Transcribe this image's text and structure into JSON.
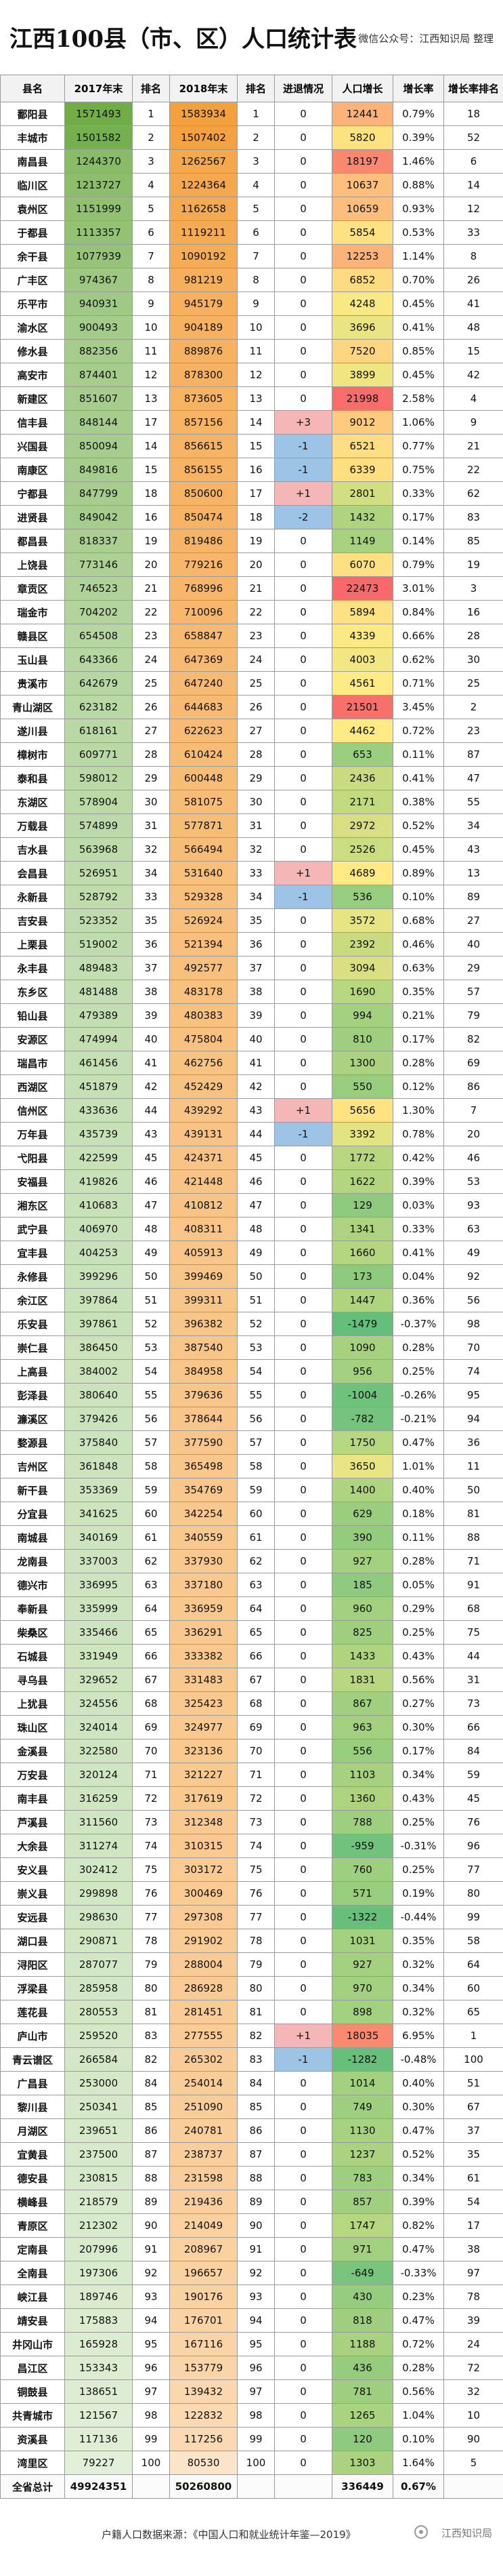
{
  "header": {
    "title": "江西100县（市、区）人口统计表",
    "note": "微信公众号：江西知识局 整理"
  },
  "table": {
    "columns": [
      "县名",
      "2017年末",
      "排名",
      "2018年末",
      "排名",
      "进退情况",
      "人口增长",
      "增长率",
      "增长率排名"
    ],
    "rows": [
      [
        "鄱阳县",
        1571493,
        1,
        1583934,
        1,
        "0",
        12441,
        "0.79%",
        18
      ],
      [
        "丰城市",
        1501582,
        2,
        1507402,
        2,
        "0",
        5820,
        "0.39%",
        52
      ],
      [
        "南昌县",
        1244370,
        3,
        1262567,
        3,
        "0",
        18197,
        "1.46%",
        6
      ],
      [
        "临川区",
        1213727,
        4,
        1224364,
        4,
        "0",
        10637,
        "0.88%",
        14
      ],
      [
        "袁州区",
        1151999,
        5,
        1162658,
        5,
        "0",
        10659,
        "0.93%",
        12
      ],
      [
        "于都县",
        1113357,
        6,
        1119211,
        6,
        "0",
        5854,
        "0.53%",
        33
      ],
      [
        "余干县",
        1077939,
        7,
        1090192,
        7,
        "0",
        12253,
        "1.14%",
        8
      ],
      [
        "广丰区",
        974367,
        8,
        981219,
        8,
        "0",
        6852,
        "0.70%",
        26
      ],
      [
        "乐平市",
        940931,
        9,
        945179,
        9,
        "0",
        4248,
        "0.45%",
        41
      ],
      [
        "渝水区",
        900493,
        10,
        904189,
        10,
        "0",
        3696,
        "0.41%",
        48
      ],
      [
        "修水县",
        882356,
        11,
        889876,
        11,
        "0",
        7520,
        "0.85%",
        15
      ],
      [
        "高安市",
        874401,
        12,
        878300,
        12,
        "0",
        3899,
        "0.45%",
        42
      ],
      [
        "新建区",
        851607,
        13,
        873605,
        13,
        "0",
        21998,
        "2.58%",
        4
      ],
      [
        "信丰县",
        848144,
        17,
        857156,
        14,
        "+3",
        9012,
        "1.06%",
        9
      ],
      [
        "兴国县",
        850094,
        14,
        856615,
        15,
        "-1",
        6521,
        "0.77%",
        21
      ],
      [
        "南康区",
        849816,
        15,
        856155,
        16,
        "-1",
        6339,
        "0.75%",
        22
      ],
      [
        "宁都县",
        847799,
        18,
        850600,
        17,
        "+1",
        2801,
        "0.33%",
        62
      ],
      [
        "进贤县",
        849042,
        16,
        850474,
        18,
        "-2",
        1432,
        "0.17%",
        83
      ],
      [
        "都昌县",
        818337,
        19,
        819486,
        19,
        "0",
        1149,
        "0.14%",
        85
      ],
      [
        "上饶县",
        773146,
        20,
        779216,
        20,
        "0",
        6070,
        "0.79%",
        19
      ],
      [
        "章贡区",
        746523,
        21,
        768996,
        21,
        "0",
        22473,
        "3.01%",
        3
      ],
      [
        "瑞金市",
        704202,
        22,
        710096,
        22,
        "0",
        5894,
        "0.84%",
        16
      ],
      [
        "赣县区",
        654508,
        23,
        658847,
        23,
        "0",
        4339,
        "0.66%",
        28
      ],
      [
        "玉山县",
        643366,
        24,
        647369,
        24,
        "0",
        4003,
        "0.62%",
        30
      ],
      [
        "贵溪市",
        642679,
        25,
        647240,
        25,
        "0",
        4561,
        "0.71%",
        25
      ],
      [
        "青山湖区",
        623182,
        26,
        644683,
        26,
        "0",
        21501,
        "3.45%",
        2
      ],
      [
        "遂川县",
        618161,
        27,
        622623,
        27,
        "0",
        4462,
        "0.72%",
        23
      ],
      [
        "樟树市",
        609771,
        28,
        610424,
        28,
        "0",
        653,
        "0.11%",
        87
      ],
      [
        "泰和县",
        598012,
        29,
        600448,
        29,
        "0",
        2436,
        "0.41%",
        47
      ],
      [
        "东湖区",
        578904,
        30,
        581075,
        30,
        "0",
        2171,
        "0.38%",
        55
      ],
      [
        "万载县",
        574899,
        31,
        577871,
        31,
        "0",
        2972,
        "0.52%",
        34
      ],
      [
        "吉水县",
        563968,
        32,
        566494,
        32,
        "0",
        2526,
        "0.45%",
        43
      ],
      [
        "会昌县",
        526951,
        34,
        531640,
        33,
        "+1",
        4689,
        "0.89%",
        13
      ],
      [
        "永新县",
        528792,
        33,
        529328,
        34,
        "-1",
        536,
        "0.10%",
        89
      ],
      [
        "吉安县",
        523352,
        35,
        526924,
        35,
        "0",
        3572,
        "0.68%",
        27
      ],
      [
        "上栗县",
        519002,
        36,
        521394,
        36,
        "0",
        2392,
        "0.46%",
        40
      ],
      [
        "永丰县",
        489483,
        37,
        492577,
        37,
        "0",
        3094,
        "0.63%",
        29
      ],
      [
        "东乡区",
        481488,
        38,
        483178,
        38,
        "0",
        1690,
        "0.35%",
        57
      ],
      [
        "铅山县",
        479389,
        39,
        480383,
        39,
        "0",
        994,
        "0.21%",
        79
      ],
      [
        "安源区",
        474994,
        40,
        475804,
        40,
        "0",
        810,
        "0.17%",
        82
      ],
      [
        "瑞昌市",
        461456,
        41,
        462756,
        41,
        "0",
        1300,
        "0.28%",
        69
      ],
      [
        "西湖区",
        451879,
        42,
        452429,
        42,
        "0",
        550,
        "0.12%",
        86
      ],
      [
        "信州区",
        433636,
        44,
        439292,
        43,
        "+1",
        5656,
        "1.30%",
        7
      ],
      [
        "万年县",
        435739,
        43,
        439131,
        44,
        "-1",
        3392,
        "0.78%",
        20
      ],
      [
        "弋阳县",
        422599,
        45,
        424371,
        45,
        "0",
        1772,
        "0.42%",
        46
      ],
      [
        "安福县",
        419826,
        46,
        421448,
        46,
        "0",
        1622,
        "0.39%",
        53
      ],
      [
        "湘东区",
        410683,
        47,
        410812,
        47,
        "0",
        129,
        "0.03%",
        93
      ],
      [
        "武宁县",
        406970,
        48,
        408311,
        48,
        "0",
        1341,
        "0.33%",
        63
      ],
      [
        "宜丰县",
        404253,
        49,
        405913,
        49,
        "0",
        1660,
        "0.41%",
        49
      ],
      [
        "永修县",
        399296,
        50,
        399469,
        50,
        "0",
        173,
        "0.04%",
        92
      ],
      [
        "余江区",
        397864,
        51,
        399311,
        51,
        "0",
        1447,
        "0.36%",
        56
      ],
      [
        "乐安县",
        397861,
        52,
        396382,
        52,
        "0",
        -1479,
        "-0.37%",
        98
      ],
      [
        "崇仁县",
        386450,
        53,
        387540,
        53,
        "0",
        1090,
        "0.28%",
        70
      ],
      [
        "上高县",
        384002,
        54,
        384958,
        54,
        "0",
        956,
        "0.25%",
        74
      ],
      [
        "彭泽县",
        380640,
        55,
        379636,
        55,
        "0",
        -1004,
        "-0.26%",
        95
      ],
      [
        "濂溪区",
        379426,
        56,
        378644,
        56,
        "0",
        -782,
        "-0.21%",
        94
      ],
      [
        "婺源县",
        375840,
        57,
        377590,
        57,
        "0",
        1750,
        "0.47%",
        36
      ],
      [
        "吉州区",
        361848,
        58,
        365498,
        58,
        "0",
        3650,
        "1.01%",
        11
      ],
      [
        "新干县",
        353369,
        59,
        354769,
        59,
        "0",
        1400,
        "0.40%",
        50
      ],
      [
        "分宜县",
        341625,
        60,
        342254,
        60,
        "0",
        629,
        "0.18%",
        81
      ],
      [
        "南城县",
        340169,
        61,
        340559,
        61,
        "0",
        390,
        "0.11%",
        88
      ],
      [
        "龙南县",
        337003,
        62,
        337930,
        62,
        "0",
        927,
        "0.28%",
        71
      ],
      [
        "德兴市",
        336995,
        63,
        337180,
        63,
        "0",
        185,
        "0.05%",
        91
      ],
      [
        "奉新县",
        335999,
        64,
        336959,
        64,
        "0",
        960,
        "0.29%",
        68
      ],
      [
        "柴桑区",
        335466,
        65,
        336291,
        65,
        "0",
        825,
        "0.25%",
        75
      ],
      [
        "石城县",
        331949,
        66,
        333382,
        66,
        "0",
        1433,
        "0.43%",
        44
      ],
      [
        "寻乌县",
        329652,
        67,
        331483,
        67,
        "0",
        1831,
        "0.56%",
        31
      ],
      [
        "上犹县",
        324556,
        68,
        325423,
        68,
        "0",
        867,
        "0.27%",
        73
      ],
      [
        "珠山区",
        324014,
        69,
        324977,
        69,
        "0",
        963,
        "0.30%",
        66
      ],
      [
        "金溪县",
        322580,
        70,
        323136,
        70,
        "0",
        556,
        "0.17%",
        84
      ],
      [
        "万安县",
        320124,
        71,
        321227,
        71,
        "0",
        1103,
        "0.34%",
        59
      ],
      [
        "南丰县",
        316259,
        72,
        317619,
        72,
        "0",
        1360,
        "0.43%",
        45
      ],
      [
        "芦溪县",
        311560,
        73,
        312348,
        73,
        "0",
        788,
        "0.25%",
        76
      ],
      [
        "大余县",
        311274,
        74,
        310315,
        74,
        "0",
        -959,
        "-0.31%",
        96
      ],
      [
        "安义县",
        302412,
        75,
        303172,
        75,
        "0",
        760,
        "0.25%",
        77
      ],
      [
        "崇义县",
        299898,
        76,
        300469,
        76,
        "0",
        571,
        "0.19%",
        80
      ],
      [
        "安远县",
        298630,
        77,
        297308,
        77,
        "0",
        -1322,
        "-0.44%",
        99
      ],
      [
        "湖口县",
        290871,
        78,
        291902,
        78,
        "0",
        1031,
        "0.35%",
        58
      ],
      [
        "浔阳区",
        287077,
        79,
        288004,
        79,
        "0",
        927,
        "0.32%",
        64
      ],
      [
        "浮梁县",
        285958,
        80,
        286928,
        80,
        "0",
        970,
        "0.34%",
        60
      ],
      [
        "莲花县",
        280553,
        81,
        281451,
        81,
        "0",
        898,
        "0.32%",
        65
      ],
      [
        "庐山市",
        259520,
        83,
        277555,
        82,
        "+1",
        18035,
        "6.95%",
        1
      ],
      [
        "青云谱区",
        266584,
        82,
        265302,
        83,
        "-1",
        -1282,
        "-0.48%",
        100
      ],
      [
        "广昌县",
        253000,
        84,
        254014,
        84,
        "0",
        1014,
        "0.40%",
        51
      ],
      [
        "黎川县",
        250341,
        85,
        251090,
        85,
        "0",
        749,
        "0.30%",
        67
      ],
      [
        "月湖区",
        239651,
        86,
        240781,
        86,
        "0",
        1130,
        "0.47%",
        37
      ],
      [
        "宜黄县",
        237500,
        87,
        238737,
        87,
        "0",
        1237,
        "0.52%",
        35
      ],
      [
        "德安县",
        230815,
        88,
        231598,
        88,
        "0",
        783,
        "0.34%",
        61
      ],
      [
        "横峰县",
        218579,
        89,
        219436,
        89,
        "0",
        857,
        "0.39%",
        54
      ],
      [
        "青原区",
        212302,
        90,
        214049,
        90,
        "0",
        1747,
        "0.82%",
        17
      ],
      [
        "定南县",
        207996,
        91,
        208967,
        91,
        "0",
        971,
        "0.47%",
        38
      ],
      [
        "全南县",
        197306,
        92,
        196657,
        92,
        "0",
        -649,
        "-0.33%",
        97
      ],
      [
        "峡江县",
        189746,
        93,
        190176,
        93,
        "0",
        430,
        "0.23%",
        78
      ],
      [
        "靖安县",
        175883,
        94,
        176701,
        94,
        "0",
        818,
        "0.47%",
        39
      ],
      [
        "井冈山市",
        165928,
        95,
        167116,
        95,
        "0",
        1188,
        "0.72%",
        24
      ],
      [
        "昌江区",
        153343,
        96,
        153779,
        96,
        "0",
        436,
        "0.28%",
        72
      ],
      [
        "铜鼓县",
        138651,
        97,
        139432,
        97,
        "0",
        781,
        "0.56%",
        32
      ],
      [
        "共青城市",
        121567,
        98,
        122832,
        98,
        "0",
        1265,
        "1.04%",
        10
      ],
      [
        "资溪县",
        117136,
        99,
        117256,
        99,
        "0",
        120,
        "0.10%",
        90
      ],
      [
        "湾里区",
        79227,
        100,
        80530,
        100,
        "0",
        1303,
        "1.64%",
        5
      ]
    ],
    "total": {
      "name": "全省总计",
      "y2017": 49924351,
      "y2018": 50260800,
      "growth": 336449,
      "rate": "0.67%"
    }
  },
  "footer": {
    "source": "户籍人口数据来源：《中国人口和就业统计年鉴—2019》",
    "watermark": "江西知识局"
  }
}
